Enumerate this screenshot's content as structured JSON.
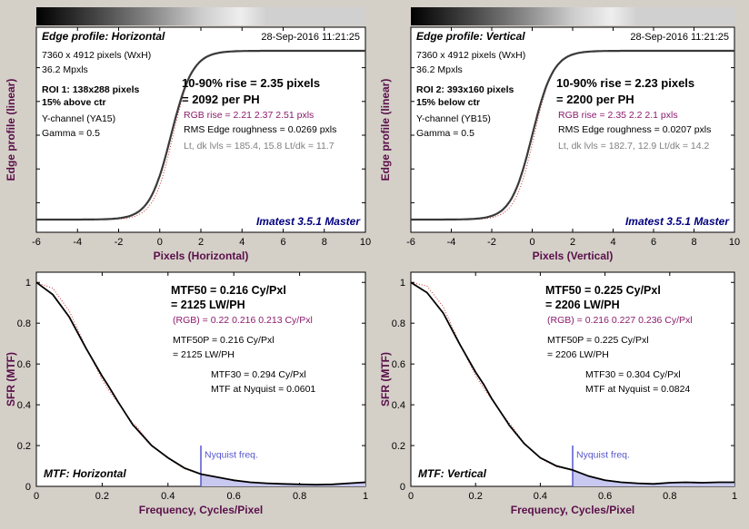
{
  "panels": [
    {
      "id": "edge-h",
      "title": "Edge profile: Horizontal",
      "date": "28-Sep-2016 11:21:25",
      "info_lines": [
        {
          "text": "7360 x 4912 pixels (WxH)",
          "bold": false,
          "color": "#000000"
        },
        {
          "text": "36.2 Mpxls",
          "bold": false,
          "color": "#000000"
        },
        {
          "text": "ROI 1:  138x288 pixels",
          "bold": true,
          "color": "#000000"
        },
        {
          "text": "15% above ctr",
          "bold": true,
          "color": "#000000"
        },
        {
          "text": "Y-channel  (YA15)",
          "bold": false,
          "color": "#000000"
        },
        {
          "text": "Gamma = 0.5",
          "bold": false,
          "color": "#000000"
        }
      ],
      "results": [
        {
          "text": "10-90% rise = 2.35 pixels",
          "size": "big",
          "color": "#000000"
        },
        {
          "text": "= 2092 per PH",
          "size": "big",
          "color": "#000000"
        },
        {
          "text": "RGB rise = 2.21  2.37  2.51 pxls",
          "size": "small",
          "color": "#8b1a6b"
        },
        {
          "text": "RMS Edge roughness = 0.0269 pxls",
          "size": "small",
          "color": "#000000"
        },
        {
          "text": "Lt, dk lvls = 185.4, 15.8   Lt/dk = 11.7",
          "size": "small",
          "color": "#808080"
        }
      ],
      "watermark": "Imatest 3.5.1 Master"
    },
    {
      "id": "edge-v",
      "title": "Edge profile: Vertical",
      "date": "28-Sep-2016 11:21:25",
      "info_lines": [
        {
          "text": "7360 x 4912 pixels (WxH)",
          "bold": false,
          "color": "#000000"
        },
        {
          "text": "36.2 Mpxls",
          "bold": false,
          "color": "#000000"
        },
        {
          "text": "ROI 2:  393x160 pixels",
          "bold": true,
          "color": "#000000"
        },
        {
          "text": "15% below ctr",
          "bold": true,
          "color": "#000000"
        },
        {
          "text": "Y-channel  (YB15)",
          "bold": false,
          "color": "#000000"
        },
        {
          "text": "Gamma = 0.5",
          "bold": false,
          "color": "#000000"
        }
      ],
      "results": [
        {
          "text": "10-90% rise = 2.23 pixels",
          "size": "big",
          "color": "#000000"
        },
        {
          "text": "= 2200 per PH",
          "size": "big",
          "color": "#000000"
        },
        {
          "text": "RGB rise = 2.35  2.2  2.1 pxls",
          "size": "small",
          "color": "#8b1a6b"
        },
        {
          "text": "RMS Edge roughness = 0.0207 pxls",
          "size": "small",
          "color": "#000000"
        },
        {
          "text": "Lt, dk lvls = 182.7, 12.9   Lt/dk = 14.2",
          "size": "small",
          "color": "#808080"
        }
      ],
      "watermark": "Imatest 3.5.1 Master"
    },
    {
      "id": "mtf-h",
      "label": "MTF: Horizontal",
      "nyquist_label": "Nyquist freq.",
      "results": [
        {
          "text": "MTF50 = 0.216 Cy/Pxl",
          "size": "big",
          "color": "#000000"
        },
        {
          "text": "= 2125 LW/PH",
          "size": "big",
          "color": "#000000"
        },
        {
          "text": "(RGB) = 0.22  0.216  0.213 Cy/Pxl",
          "size": "small",
          "color": "#8b1a6b"
        },
        {
          "text": "MTF50P = 0.216 Cy/Pxl",
          "size": "small",
          "color": "#000000"
        },
        {
          "text": "= 2125 LW/PH",
          "size": "small",
          "color": "#000000"
        },
        {
          "text": "MTF30 = 0.294 Cy/Pxl",
          "size": "small",
          "color": "#000000"
        },
        {
          "text": "MTF at Nyquist = 0.0601",
          "size": "small",
          "color": "#000000"
        }
      ]
    },
    {
      "id": "mtf-v",
      "label": "MTF: Vertical",
      "nyquist_label": "Nyquist freq.",
      "results": [
        {
          "text": "MTF50 = 0.225 Cy/Pxl",
          "size": "big",
          "color": "#000000"
        },
        {
          "text": "= 2206 LW/PH",
          "size": "big",
          "color": "#000000"
        },
        {
          "text": "(RGB) = 0.216  0.227  0.236 Cy/Pxl",
          "size": "small",
          "color": "#8b1a6b"
        },
        {
          "text": "MTF50P = 0.225 Cy/Pxl",
          "size": "small",
          "color": "#000000"
        },
        {
          "text": "= 2206 LW/PH",
          "size": "small",
          "color": "#000000"
        },
        {
          "text": "MTF30 = 0.304 Cy/Pxl",
          "size": "small",
          "color": "#000000"
        },
        {
          "text": "MTF at Nyquist = 0.0824",
          "size": "small",
          "color": "#000000"
        }
      ]
    }
  ],
  "colors": {
    "background": "#d4d0c8",
    "axis_label": "#5a0f4a",
    "curve": "#3a3a3a",
    "mtf_curve": "#000000",
    "rgb_dots": "#cc3333",
    "watermark": "#00007f",
    "nyquist_line": "#5555cc",
    "nyquist_fill": "#c8c8f0"
  },
  "chart_data": [
    {
      "type": "line",
      "id": "edge-h",
      "title": "",
      "xlabel": "Pixels (Horizontal)",
      "ylabel": "Edge profile (linear)",
      "xlim": [
        -6,
        10
      ],
      "ylim": [
        0,
        1
      ],
      "xticks": [
        -6,
        -4,
        -2,
        0,
        2,
        4,
        6,
        8,
        10
      ],
      "yticks_labeled": false,
      "grid": false,
      "edge_center": 0.55,
      "series": [
        {
          "x": [
            -6,
            -2,
            -1.5,
            -1,
            -0.5,
            0,
            0.5,
            1,
            1.5,
            2,
            2.5,
            3,
            4,
            10
          ],
          "y": [
            0.005,
            0.01,
            0.03,
            0.08,
            0.18,
            0.33,
            0.51,
            0.69,
            0.84,
            0.94,
            0.98,
            0.995,
            1.0,
            1.005
          ]
        }
      ]
    },
    {
      "type": "line",
      "id": "edge-v",
      "title": "",
      "xlabel": "Pixels (Vertical)",
      "ylabel": "Edge profile (linear)",
      "xlim": [
        -6,
        10
      ],
      "ylim": [
        0,
        1
      ],
      "xticks": [
        -6,
        -4,
        -2,
        0,
        2,
        4,
        6,
        8,
        10
      ],
      "yticks_labeled": false,
      "grid": false,
      "edge_center": 0.0,
      "series": [
        {
          "x": [
            -6,
            -2.5,
            -2,
            -1.5,
            -1,
            -0.5,
            0,
            0.5,
            1,
            1.5,
            2,
            2.5,
            3,
            10
          ],
          "y": [
            0.005,
            0.01,
            0.03,
            0.08,
            0.18,
            0.33,
            0.5,
            0.68,
            0.83,
            0.93,
            0.98,
            0.995,
            1.0,
            1.005
          ]
        }
      ]
    },
    {
      "type": "line",
      "id": "mtf-h",
      "title": "",
      "xlabel": "Frequency, Cycles/Pixel",
      "ylabel": "SFR (MTF)",
      "xlim": [
        0,
        1
      ],
      "ylim": [
        0,
        1.05
      ],
      "xticks": [
        0,
        0.2,
        0.4,
        0.6,
        0.8,
        1
      ],
      "yticks": [
        0,
        0.2,
        0.4,
        0.6,
        0.8,
        1
      ],
      "grid": false,
      "nyquist": 0.5,
      "series": [
        {
          "x": [
            0,
            0.05,
            0.1,
            0.15,
            0.2,
            0.216,
            0.25,
            0.294,
            0.3,
            0.35,
            0.4,
            0.45,
            0.5,
            0.55,
            0.6,
            0.65,
            0.7,
            0.75,
            0.8,
            0.85,
            0.9,
            0.95,
            1.0
          ],
          "y": [
            1.0,
            0.94,
            0.83,
            0.68,
            0.54,
            0.5,
            0.41,
            0.3,
            0.29,
            0.2,
            0.14,
            0.09,
            0.06,
            0.045,
            0.03,
            0.02,
            0.015,
            0.012,
            0.01,
            0.008,
            0.01,
            0.015,
            0.02
          ]
        }
      ]
    },
    {
      "type": "line",
      "id": "mtf-v",
      "title": "",
      "xlabel": "Frequency, Cycles/Pixel",
      "ylabel": "SFR (MTF)",
      "xlim": [
        0,
        1
      ],
      "ylim": [
        0,
        1.05
      ],
      "xticks": [
        0,
        0.2,
        0.4,
        0.6,
        0.8,
        1
      ],
      "yticks": [
        0,
        0.2,
        0.4,
        0.6,
        0.8,
        1
      ],
      "grid": false,
      "nyquist": 0.5,
      "series": [
        {
          "x": [
            0,
            0.05,
            0.1,
            0.15,
            0.2,
            0.225,
            0.25,
            0.3,
            0.304,
            0.35,
            0.4,
            0.45,
            0.5,
            0.55,
            0.6,
            0.65,
            0.7,
            0.75,
            0.8,
            0.85,
            0.9,
            0.95,
            1.0
          ],
          "y": [
            1.0,
            0.95,
            0.85,
            0.7,
            0.56,
            0.5,
            0.43,
            0.31,
            0.3,
            0.21,
            0.14,
            0.1,
            0.08,
            0.05,
            0.03,
            0.02,
            0.015,
            0.012,
            0.018,
            0.02,
            0.018,
            0.02,
            0.02
          ]
        }
      ]
    }
  ]
}
